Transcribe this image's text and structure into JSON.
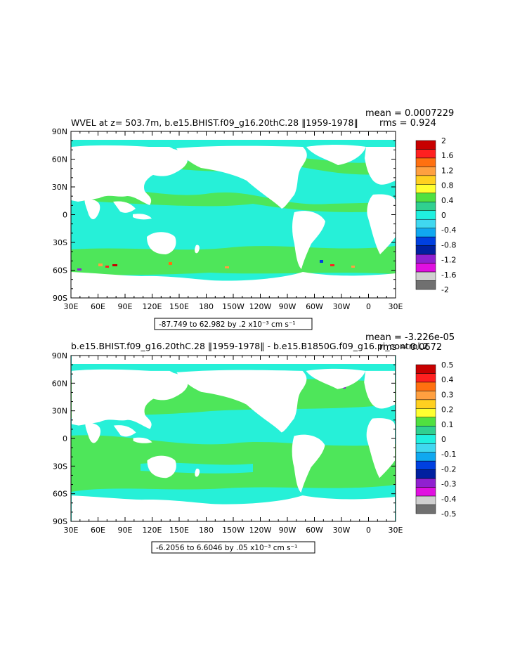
{
  "panels": [
    {
      "title": "WVEL at z= 503.7m, b.e15.BHIST.f09_g16.20thC.28 ‖1959-1978‖",
      "mean_line": "mean = 0.0007229",
      "rms_line": "rms = 0.924",
      "info_line": "-87.749 to 62.982 by .2 x10⁻³ cm s⁻¹",
      "colorbar_labels": [
        "2",
        "1.6",
        "1.2",
        "0.8",
        "0.4",
        "0",
        "-0.4",
        "-0.8",
        "-1.2",
        "-1.6",
        "-2"
      ],
      "colorbar_colors": [
        "#c80000",
        "#ff2020",
        "#ff7010",
        "#ffa040",
        "#ffd020",
        "#ffff30",
        "#50e040",
        "#30d090",
        "#20f0e0",
        "#40d8f0",
        "#10a8f0",
        "#0040e0",
        "#0020a0",
        "#9020d0",
        "#e010e0",
        "#d0d0d0",
        "#707070"
      ]
    },
    {
      "title": "b.e15.BHIST.f09_g16.20thC.28 ‖1959-1978‖ - b.e15.B1850G.f09_g16.pi_control.2",
      "mean_line": "mean = -3.226e-05",
      "rms_line": "rms = 0.0672",
      "info_line": "-6.2056 to 6.6046 by .05 x10⁻³ cm s⁻¹",
      "colorbar_labels": [
        "0.5",
        "0.4",
        "0.3",
        "0.2",
        "0.1",
        "0",
        "-0.1",
        "-0.2",
        "-0.3",
        "-0.4",
        "-0.5"
      ],
      "colorbar_colors": [
        "#c80000",
        "#ff2020",
        "#ff7010",
        "#ffa040",
        "#ffd020",
        "#ffff30",
        "#50e040",
        "#30d090",
        "#20f0e0",
        "#40d8f0",
        "#10a8f0",
        "#0040e0",
        "#0020a0",
        "#9020d0",
        "#e010e0",
        "#d0d0d0",
        "#707070"
      ]
    }
  ],
  "lat_labels": [
    "90N",
    "60N",
    "30N",
    "0",
    "30S",
    "60S",
    "90S"
  ],
  "lon_labels": [
    "30E",
    "60E",
    "90E",
    "120E",
    "150E",
    "180",
    "150W",
    "120W",
    "90W",
    "60W",
    "30W",
    "0",
    "30E"
  ],
  "colors": {
    "ocean": "#26f0d8",
    "ocean_green": "#4ee65a",
    "land": "#ffffff"
  }
}
